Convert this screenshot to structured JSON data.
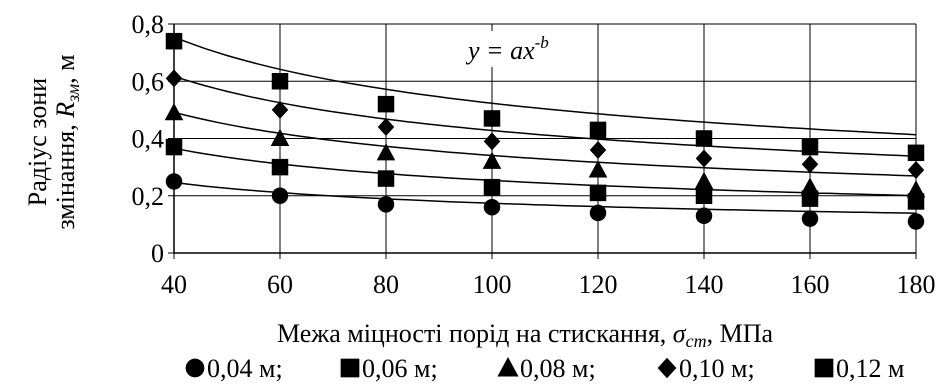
{
  "chart_data": {
    "type": "scatter",
    "title": "",
    "xlabel_main": "Межа міцності порід на стискання, ",
    "xlabel_symbol": "σ",
    "xlabel_sub": "cm",
    "xlabel_unit": ", МПа",
    "ylabel_line1": "Радіус зони",
    "ylabel_line2_main": "змінання, ",
    "ylabel_line2_symbol": "R",
    "ylabel_line2_sub": "зм",
    "ylabel_line2_unit": ", м",
    "equation_prefix": "y = ax",
    "equation_exponent": "-b",
    "xlim": [
      40,
      180
    ],
    "ylim": [
      0,
      0.8
    ],
    "grid": true,
    "legend_position": "bottom",
    "x_ticks": [
      "40",
      "60",
      "80",
      "100",
      "120",
      "140",
      "160",
      "180"
    ],
    "y_ticks": [
      "0",
      "0,2",
      "0,4",
      "0,6",
      "0,8"
    ],
    "x": [
      40,
      60,
      80,
      100,
      120,
      140,
      160,
      180
    ],
    "series": [
      {
        "name": "0,04 м;",
        "marker": "circle",
        "values": [
          0.25,
          0.2,
          0.17,
          0.16,
          0.14,
          0.13,
          0.12,
          0.11
        ],
        "trend": {
          "a": 1.0,
          "b": 0.38
        }
      },
      {
        "name": "0,06 м;",
        "marker": "square",
        "values": [
          0.37,
          0.3,
          0.26,
          0.23,
          0.21,
          0.2,
          0.19,
          0.18
        ],
        "trend": {
          "a": 1.6,
          "b": 0.4
        }
      },
      {
        "name": "0,08 м;",
        "marker": "triangle",
        "values": [
          0.49,
          0.4,
          0.35,
          0.32,
          0.29,
          0.25,
          0.23,
          0.22
        ],
        "trend": {
          "a": 2.15,
          "b": 0.4
        }
      },
      {
        "name": "0,10 м;",
        "marker": "diamond",
        "values": [
          0.61,
          0.5,
          0.44,
          0.39,
          0.36,
          0.33,
          0.31,
          0.29
        ],
        "trend": {
          "a": 2.7,
          "b": 0.4
        }
      },
      {
        "name": "0,12 м",
        "marker": "square",
        "values": [
          0.74,
          0.6,
          0.52,
          0.47,
          0.43,
          0.4,
          0.37,
          0.35
        ],
        "trend": {
          "a": 3.3,
          "b": 0.4
        }
      }
    ]
  }
}
